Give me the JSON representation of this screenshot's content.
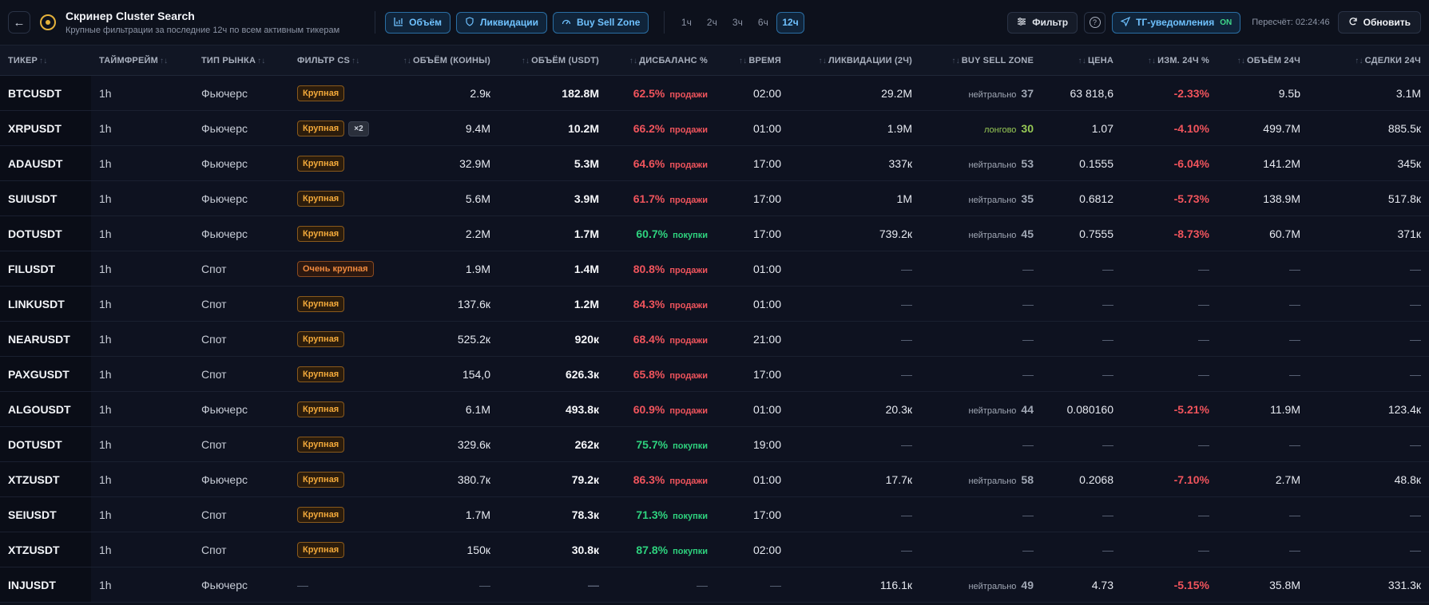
{
  "header": {
    "back_icon": "arrow-left-icon",
    "title": "Скринер Cluster Search",
    "subtitle": "Крупные фильтрации за последние 12ч по всем активным тикерам",
    "modes": [
      {
        "label": "Объём",
        "icon": "bar-chart-icon"
      },
      {
        "label": "Ликвидации",
        "icon": "shield-icon"
      },
      {
        "label": "Buy Sell Zone",
        "icon": "gauge-icon"
      }
    ],
    "timeframes": [
      "1ч",
      "2ч",
      "3ч",
      "6ч",
      "12ч"
    ],
    "active_timeframe": "12ч",
    "filter_label": "Фильтр",
    "tg_label": "ТГ-уведомления",
    "tg_state": "ON",
    "recalc_text": "Пересчёт: 02:24:46",
    "refresh_label": "Обновить"
  },
  "columns": {
    "ticker": "ТИКЕР",
    "timeframe": "ТАЙМФРЕЙМ",
    "market": "ТИП РЫНКА",
    "filter": "ФИЛЬТР CS",
    "vol_coins": "ОБЪЁМ (КОИНЫ)",
    "vol_usdt": "ОБЪЁМ (USDT)",
    "imbalance": "ДИСБАЛАНС %",
    "time": "ВРЕМЯ",
    "liq": "ЛИКВИДАЦИИ (2Ч)",
    "zone": "BUY SELL ZONE",
    "price": "ЦЕНА",
    "change": "ИЗМ. 24Ч %",
    "vol24": "ОБЪЁМ 24Ч",
    "deals24": "СДЕЛКИ 24Ч"
  },
  "dash": "—",
  "colors": {
    "sell": "#f0545c",
    "buy": "#2ed27e",
    "accent": "#6fc2ff",
    "tag": "#f3a93a",
    "long": "#97c955"
  },
  "rows": [
    {
      "ticker": "BTCUSDT",
      "tf": "1h",
      "market": "Фьючерс",
      "filter": "Крупная",
      "mult": "",
      "vol_coins": "2.9к",
      "vol_usdt": "182.8M",
      "imb_pct": "62.5%",
      "imb_side": "продажи",
      "imb_type": "sell",
      "time": "02:00",
      "liq": "29.2M",
      "zone_label": "нейтрально",
      "zone_val": "37",
      "zone_type": "neutral",
      "price": "63 818,6",
      "change": "-2.33%",
      "vol24": "9.5b",
      "deals24": "3.1M"
    },
    {
      "ticker": "XRPUSDT",
      "tf": "1h",
      "market": "Фьючерс",
      "filter": "Крупная",
      "mult": "×2",
      "vol_coins": "9.4M",
      "vol_usdt": "10.2M",
      "imb_pct": "66.2%",
      "imb_side": "продажи",
      "imb_type": "sell",
      "time": "01:00",
      "liq": "1.9M",
      "zone_label": "лонгово",
      "zone_val": "30",
      "zone_type": "long",
      "price": "1.07",
      "change": "-4.10%",
      "vol24": "499.7M",
      "deals24": "885.5к"
    },
    {
      "ticker": "ADAUSDT",
      "tf": "1h",
      "market": "Фьючерс",
      "filter": "Крупная",
      "mult": "",
      "vol_coins": "32.9M",
      "vol_usdt": "5.3M",
      "imb_pct": "64.6%",
      "imb_side": "продажи",
      "imb_type": "sell",
      "time": "17:00",
      "liq": "337к",
      "zone_label": "нейтрально",
      "zone_val": "53",
      "zone_type": "neutral",
      "price": "0.1555",
      "change": "-6.04%",
      "vol24": "141.2M",
      "deals24": "345к"
    },
    {
      "ticker": "SUIUSDT",
      "tf": "1h",
      "market": "Фьючерс",
      "filter": "Крупная",
      "mult": "",
      "vol_coins": "5.6M",
      "vol_usdt": "3.9M",
      "imb_pct": "61.7%",
      "imb_side": "продажи",
      "imb_type": "sell",
      "time": "17:00",
      "liq": "1M",
      "zone_label": "нейтрально",
      "zone_val": "35",
      "zone_type": "neutral",
      "price": "0.6812",
      "change": "-5.73%",
      "vol24": "138.9M",
      "deals24": "517.8к"
    },
    {
      "ticker": "DOTUSDT",
      "tf": "1h",
      "market": "Фьючерс",
      "filter": "Крупная",
      "mult": "",
      "vol_coins": "2.2M",
      "vol_usdt": "1.7M",
      "imb_pct": "60.7%",
      "imb_side": "покупки",
      "imb_type": "buy",
      "time": "17:00",
      "liq": "739.2к",
      "zone_label": "нейтрально",
      "zone_val": "45",
      "zone_type": "neutral",
      "price": "0.7555",
      "change": "-8.73%",
      "vol24": "60.7M",
      "deals24": "371к"
    },
    {
      "ticker": "FILUSDT",
      "tf": "1h",
      "market": "Спот",
      "filter": "Очень крупная",
      "mult": "",
      "vol_coins": "1.9M",
      "vol_usdt": "1.4M",
      "imb_pct": "80.8%",
      "imb_side": "продажи",
      "imb_type": "sell",
      "time": "01:00",
      "liq": "",
      "zone_label": "",
      "zone_val": "",
      "zone_type": "",
      "price": "",
      "change": "",
      "vol24": "",
      "deals24": ""
    },
    {
      "ticker": "LINKUSDT",
      "tf": "1h",
      "market": "Спот",
      "filter": "Крупная",
      "mult": "",
      "vol_coins": "137.6к",
      "vol_usdt": "1.2M",
      "imb_pct": "84.3%",
      "imb_side": "продажи",
      "imb_type": "sell",
      "time": "01:00",
      "liq": "",
      "zone_label": "",
      "zone_val": "",
      "zone_type": "",
      "price": "",
      "change": "",
      "vol24": "",
      "deals24": ""
    },
    {
      "ticker": "NEARUSDT",
      "tf": "1h",
      "market": "Спот",
      "filter": "Крупная",
      "mult": "",
      "vol_coins": "525.2к",
      "vol_usdt": "920к",
      "imb_pct": "68.4%",
      "imb_side": "продажи",
      "imb_type": "sell",
      "time": "21:00",
      "liq": "",
      "zone_label": "",
      "zone_val": "",
      "zone_type": "",
      "price": "",
      "change": "",
      "vol24": "",
      "deals24": ""
    },
    {
      "ticker": "PAXGUSDT",
      "tf": "1h",
      "market": "Спот",
      "filter": "Крупная",
      "mult": "",
      "vol_coins": "154,0",
      "vol_usdt": "626.3к",
      "imb_pct": "65.8%",
      "imb_side": "продажи",
      "imb_type": "sell",
      "time": "17:00",
      "liq": "",
      "zone_label": "",
      "zone_val": "",
      "zone_type": "",
      "price": "",
      "change": "",
      "vol24": "",
      "deals24": ""
    },
    {
      "ticker": "ALGOUSDT",
      "tf": "1h",
      "market": "Фьючерс",
      "filter": "Крупная",
      "mult": "",
      "vol_coins": "6.1M",
      "vol_usdt": "493.8к",
      "imb_pct": "60.9%",
      "imb_side": "продажи",
      "imb_type": "sell",
      "time": "01:00",
      "liq": "20.3к",
      "zone_label": "нейтрально",
      "zone_val": "44",
      "zone_type": "neutral",
      "price": "0.080160",
      "change": "-5.21%",
      "vol24": "11.9M",
      "deals24": "123.4к"
    },
    {
      "ticker": "DOTUSDT",
      "tf": "1h",
      "market": "Спот",
      "filter": "Крупная",
      "mult": "",
      "vol_coins": "329.6к",
      "vol_usdt": "262к",
      "imb_pct": "75.7%",
      "imb_side": "покупки",
      "imb_type": "buy",
      "time": "19:00",
      "liq": "",
      "zone_label": "",
      "zone_val": "",
      "zone_type": "",
      "price": "",
      "change": "",
      "vol24": "",
      "deals24": ""
    },
    {
      "ticker": "XTZUSDT",
      "tf": "1h",
      "market": "Фьючерс",
      "filter": "Крупная",
      "mult": "",
      "vol_coins": "380.7к",
      "vol_usdt": "79.2к",
      "imb_pct": "86.3%",
      "imb_side": "продажи",
      "imb_type": "sell",
      "time": "01:00",
      "liq": "17.7к",
      "zone_label": "нейтрально",
      "zone_val": "58",
      "zone_type": "neutral",
      "price": "0.2068",
      "change": "-7.10%",
      "vol24": "2.7M",
      "deals24": "48.8к"
    },
    {
      "ticker": "SEIUSDT",
      "tf": "1h",
      "market": "Спот",
      "filter": "Крупная",
      "mult": "",
      "vol_coins": "1.7M",
      "vol_usdt": "78.3к",
      "imb_pct": "71.3%",
      "imb_side": "покупки",
      "imb_type": "buy",
      "time": "17:00",
      "liq": "",
      "zone_label": "",
      "zone_val": "",
      "zone_type": "",
      "price": "",
      "change": "",
      "vol24": "",
      "deals24": ""
    },
    {
      "ticker": "XTZUSDT",
      "tf": "1h",
      "market": "Спот",
      "filter": "Крупная",
      "mult": "",
      "vol_coins": "150к",
      "vol_usdt": "30.8к",
      "imb_pct": "87.8%",
      "imb_side": "покупки",
      "imb_type": "buy",
      "time": "02:00",
      "liq": "",
      "zone_label": "",
      "zone_val": "",
      "zone_type": "",
      "price": "",
      "change": "",
      "vol24": "",
      "deals24": ""
    },
    {
      "ticker": "INJUSDT",
      "tf": "1h",
      "market": "Фьючерс",
      "filter": "",
      "mult": "",
      "vol_coins": "",
      "vol_usdt": "",
      "imb_pct": "",
      "imb_side": "",
      "imb_type": "",
      "time": "",
      "liq": "116.1к",
      "zone_label": "нейтрально",
      "zone_val": "49",
      "zone_type": "neutral",
      "price": "4.73",
      "change": "-5.15%",
      "vol24": "35.8M",
      "deals24": "331.3к"
    }
  ]
}
